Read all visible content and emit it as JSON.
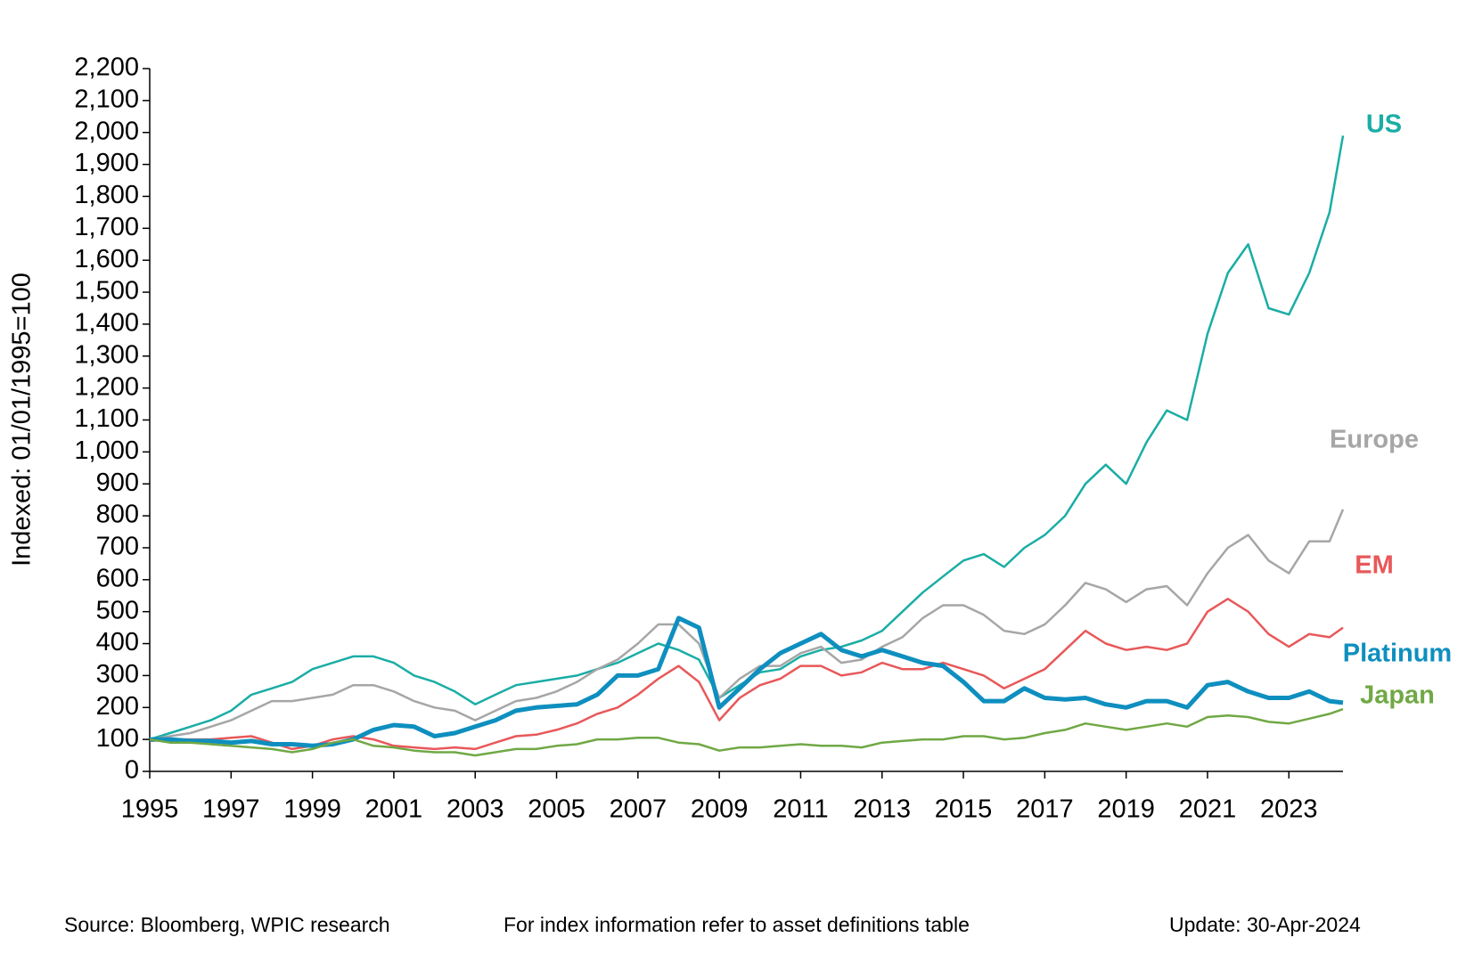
{
  "chart_data": {
    "type": "line",
    "ylabel": "Indexed:  01/01/1995=100",
    "footer": [
      "Source: Bloomberg, WPIC research",
      "For index information refer to asset definitions table",
      "Update: 30-Apr-2024"
    ],
    "x": [
      1995,
      1995.5,
      1996,
      1996.5,
      1997,
      1997.5,
      1998,
      1998.5,
      1999,
      1999.5,
      2000,
      2000.5,
      2001,
      2001.5,
      2002,
      2002.5,
      2003,
      2003.5,
      2004,
      2004.5,
      2005,
      2005.5,
      2006,
      2006.5,
      2007,
      2007.5,
      2008,
      2008.5,
      2009,
      2009.5,
      2010,
      2010.5,
      2011,
      2011.5,
      2012,
      2012.5,
      2013,
      2013.5,
      2014,
      2014.5,
      2015,
      2015.5,
      2016,
      2016.5,
      2017,
      2017.5,
      2018,
      2018.5,
      2019,
      2019.5,
      2020,
      2020.5,
      2021,
      2021.5,
      2022,
      2022.5,
      2023,
      2023.5,
      2024,
      2024.33
    ],
    "xlim": [
      1995,
      2024.33
    ],
    "xticks": [
      1995,
      1997,
      1999,
      2001,
      2003,
      2005,
      2007,
      2009,
      2011,
      2013,
      2015,
      2017,
      2019,
      2021,
      2023
    ],
    "ylim": [
      0,
      2200
    ],
    "yticks": [
      0,
      100,
      200,
      300,
      400,
      500,
      600,
      700,
      800,
      900,
      {
        "value": 1000,
        "label": "1,000"
      },
      {
        "value": 1100,
        "label": "1,100"
      },
      {
        "value": 1200,
        "label": "1,200"
      },
      {
        "value": 1300,
        "label": "1,300"
      },
      {
        "value": 1400,
        "label": "1,400"
      },
      {
        "value": 1500,
        "label": "1,500"
      },
      {
        "value": 1600,
        "label": "1,600"
      },
      {
        "value": 1700,
        "label": "1,700"
      },
      {
        "value": 1800,
        "label": "1,800"
      },
      {
        "value": 1900,
        "label": "1,900"
      },
      {
        "value": 2000,
        "label": "2,000"
      },
      {
        "value": 2100,
        "label": "2,100"
      },
      {
        "value": 2200,
        "label": "2,200"
      }
    ],
    "series": [
      {
        "name": "US",
        "color": "#1aada5",
        "line_width": 2.5,
        "values": [
          100,
          120,
          140,
          160,
          190,
          240,
          260,
          280,
          320,
          340,
          360,
          360,
          340,
          300,
          280,
          250,
          210,
          240,
          270,
          280,
          290,
          300,
          320,
          340,
          370,
          400,
          380,
          350,
          230,
          270,
          310,
          320,
          360,
          380,
          390,
          410,
          440,
          500,
          560,
          610,
          660,
          680,
          640,
          700,
          740,
          800,
          900,
          960,
          900,
          1030,
          1130,
          1100,
          1370,
          1560,
          1650,
          1450,
          1430,
          1560,
          1750,
          1990
        ]
      },
      {
        "name": "Europe",
        "color": "#a6a6a6",
        "line_width": 2.5,
        "values": [
          100,
          110,
          120,
          140,
          160,
          190,
          220,
          220,
          230,
          240,
          270,
          270,
          250,
          220,
          200,
          190,
          160,
          190,
          220,
          230,
          250,
          280,
          320,
          350,
          400,
          460,
          460,
          400,
          230,
          290,
          330,
          330,
          370,
          390,
          340,
          350,
          390,
          420,
          480,
          520,
          520,
          490,
          440,
          430,
          460,
          520,
          590,
          570,
          530,
          570,
          580,
          520,
          620,
          700,
          740,
          660,
          620,
          720,
          720,
          820
        ]
      },
      {
        "name": "EM",
        "color": "#e8585a",
        "line_width": 2.5,
        "values": [
          95,
          100,
          100,
          100,
          105,
          110,
          90,
          70,
          80,
          100,
          110,
          100,
          80,
          75,
          70,
          75,
          70,
          90,
          110,
          115,
          130,
          150,
          180,
          200,
          240,
          290,
          330,
          280,
          160,
          230,
          270,
          290,
          330,
          330,
          300,
          310,
          340,
          320,
          320,
          340,
          320,
          300,
          260,
          290,
          320,
          380,
          440,
          400,
          380,
          390,
          380,
          400,
          500,
          540,
          500,
          430,
          390,
          430,
          420,
          450
        ]
      },
      {
        "name": "Platinum",
        "color": "#0e8fbf",
        "line_width": 5,
        "values": [
          100,
          100,
          95,
          95,
          90,
          95,
          85,
          85,
          80,
          85,
          100,
          130,
          145,
          140,
          110,
          120,
          140,
          160,
          190,
          200,
          205,
          210,
          240,
          300,
          300,
          320,
          480,
          450,
          200,
          260,
          320,
          370,
          400,
          430,
          380,
          360,
          380,
          360,
          340,
          330,
          280,
          220,
          220,
          260,
          230,
          225,
          230,
          210,
          200,
          220,
          220,
          200,
          270,
          280,
          250,
          230,
          230,
          250,
          220,
          215
        ]
      },
      {
        "name": "Japan",
        "color": "#70a845",
        "line_width": 2.5,
        "values": [
          100,
          90,
          90,
          85,
          80,
          75,
          70,
          60,
          70,
          90,
          100,
          80,
          75,
          65,
          60,
          60,
          50,
          60,
          70,
          70,
          80,
          85,
          100,
          100,
          105,
          105,
          90,
          85,
          65,
          75,
          75,
          80,
          85,
          80,
          80,
          75,
          90,
          95,
          100,
          100,
          110,
          110,
          100,
          105,
          120,
          130,
          150,
          140,
          130,
          140,
          150,
          140,
          170,
          175,
          170,
          155,
          150,
          165,
          180,
          195
        ]
      }
    ]
  }
}
